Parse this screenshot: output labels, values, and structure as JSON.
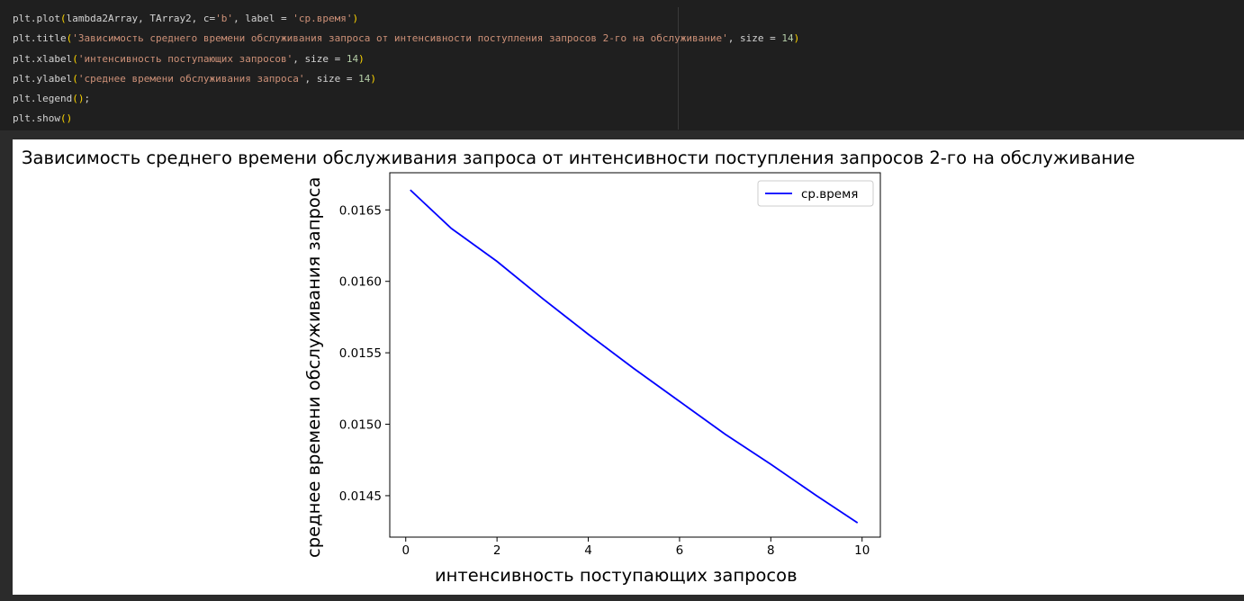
{
  "code": {
    "lines": [
      [
        {
          "t": "plt.plot",
          "k": "plain"
        },
        {
          "t": "(",
          "k": "par"
        },
        {
          "t": "lambda2Array, TArray2, c=",
          "k": "plain"
        },
        {
          "t": "'b'",
          "k": "str"
        },
        {
          "t": ", label = ",
          "k": "plain"
        },
        {
          "t": "'ср.время'",
          "k": "str"
        },
        {
          "t": ")",
          "k": "par"
        }
      ],
      [
        {
          "t": "plt.title",
          "k": "plain"
        },
        {
          "t": "(",
          "k": "par"
        },
        {
          "t": "'Зависимость среднего времени обслуживания запроса от интенсивности поступления запросов 2-го на обслуживание'",
          "k": "str"
        },
        {
          "t": ", size = ",
          "k": "plain"
        },
        {
          "t": "14",
          "k": "num"
        },
        {
          "t": ")",
          "k": "par"
        }
      ],
      [
        {
          "t": "plt.xlabel",
          "k": "plain"
        },
        {
          "t": "(",
          "k": "par"
        },
        {
          "t": "'интенсивность поступающих запросов'",
          "k": "str"
        },
        {
          "t": ", size = ",
          "k": "plain"
        },
        {
          "t": "14",
          "k": "num"
        },
        {
          "t": ")",
          "k": "par"
        }
      ],
      [
        {
          "t": "plt.ylabel",
          "k": "plain"
        },
        {
          "t": "(",
          "k": "par"
        },
        {
          "t": "'среднее времени обслуживания запроса'",
          "k": "str"
        },
        {
          "t": ", size = ",
          "k": "plain"
        },
        {
          "t": "14",
          "k": "num"
        },
        {
          "t": ")",
          "k": "par"
        }
      ],
      [
        {
          "t": "plt.legend",
          "k": "plain"
        },
        {
          "t": "()",
          "k": "par"
        },
        {
          "t": ";",
          "k": "plain"
        }
      ],
      [
        {
          "t": "plt.show",
          "k": "plain"
        },
        {
          "t": "()",
          "k": "par"
        }
      ]
    ]
  },
  "chart_data": {
    "type": "line",
    "title": "Зависимость среднего времени обслуживания запроса от интенсивности поступления запросов 2-го на обслуживание",
    "xlabel": "интенсивность поступающих запросов",
    "ylabel": "среднее времени обслуживания запроса",
    "xlim": [
      -0.35,
      10.4
    ],
    "ylim": [
      0.01421,
      0.01676
    ],
    "xticks": [
      0,
      2,
      4,
      6,
      8,
      10
    ],
    "yticks": [
      0.0145,
      0.015,
      0.0155,
      0.016,
      0.0165
    ],
    "ytick_labels": [
      "0.0145",
      "0.0150",
      "0.0155",
      "0.0160",
      "0.0165"
    ],
    "grid": false,
    "legend_position": "top-right",
    "series": [
      {
        "name": "ср.время",
        "color": "#0000ff",
        "x": [
          0.1,
          1,
          2,
          3,
          4,
          5,
          6,
          7,
          8,
          9,
          9.9
        ],
        "y": [
          0.01664,
          0.01637,
          0.01614,
          0.01588,
          0.01563,
          0.01539,
          0.01516,
          0.01493,
          0.01472,
          0.0145,
          0.01431
        ]
      }
    ]
  },
  "colors": {
    "code_bg": "#1f1f1f",
    "string": "#ce9178",
    "number": "#b5cea8",
    "paren": "#ffd700"
  }
}
